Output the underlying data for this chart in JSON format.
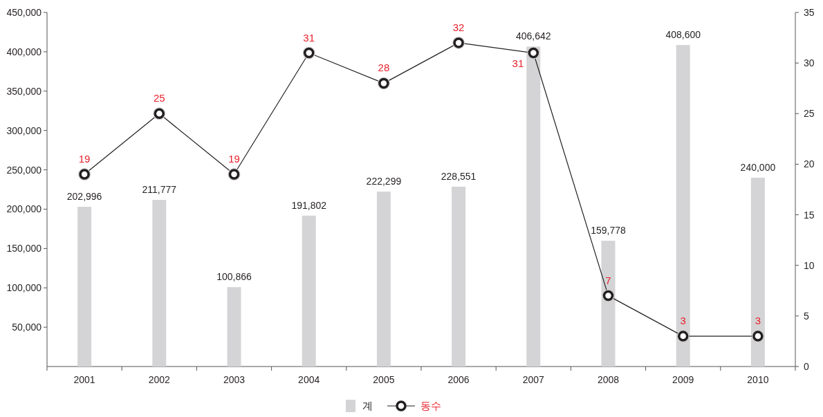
{
  "chart_data": {
    "type": "bar",
    "categories": [
      "2001",
      "2002",
      "2003",
      "2004",
      "2005",
      "2006",
      "2007",
      "2008",
      "2009",
      "2010"
    ],
    "ylim": [
      0,
      450000
    ],
    "yticks": [
      {
        "value": 50000,
        "label": "50,000"
      },
      {
        "value": 100000,
        "label": "100,000"
      },
      {
        "value": 150000,
        "label": "150,000"
      },
      {
        "value": 200000,
        "label": "200,000"
      },
      {
        "value": 250000,
        "label": "250,000"
      },
      {
        "value": 300000,
        "label": "300,000"
      },
      {
        "value": 350000,
        "label": "350,000"
      },
      {
        "value": 400000,
        "label": "400,000"
      },
      {
        "value": 450000,
        "label": "450,000"
      }
    ],
    "y2lim": [
      0,
      35
    ],
    "y2ticks": [
      0,
      5,
      10,
      15,
      20,
      25,
      30,
      35
    ],
    "series": [
      {
        "name": "계",
        "color": "#d4d4d6",
        "values": [
          202996,
          211777,
          100866,
          191802,
          222299,
          228551,
          406642,
          159778,
          408600,
          240000
        ],
        "value_labels": [
          "202,996",
          "211,777",
          "100,866",
          "191,802",
          "222,299",
          "228,551",
          "406,642",
          "159,778",
          "408,600",
          "240,000"
        ]
      },
      {
        "name": "동수",
        "type": "line",
        "axis": "y2",
        "color": "#231f20",
        "values": [
          19,
          25,
          19,
          31,
          28,
          32,
          31,
          7,
          3,
          3
        ],
        "value_labels": [
          "19",
          "25",
          "19",
          "31",
          "28",
          "32",
          "31",
          "7",
          "3",
          "3"
        ]
      }
    ],
    "marker": "circle",
    "legend": "bottom",
    "grid": false
  }
}
